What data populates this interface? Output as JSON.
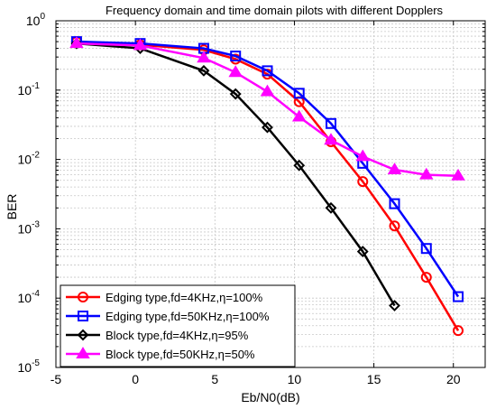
{
  "chart_data": {
    "type": "line",
    "title": "Frequency domain and time domain pilots with different Dopplers",
    "xlabel": "Eb/N0(dB)",
    "ylabel": "BER",
    "xlim": [
      -5,
      22
    ],
    "ylim": [
      1e-05,
      1
    ],
    "yscale": "log",
    "grid": true,
    "legend_position": "bottom-left",
    "xticks": [
      -5,
      0,
      5,
      10,
      15,
      20
    ],
    "yticks": [
      {
        "value": 1e-05,
        "base": "10",
        "exp": "-5"
      },
      {
        "value": 0.0001,
        "base": "10",
        "exp": "-4"
      },
      {
        "value": 0.001,
        "base": "10",
        "exp": "-3"
      },
      {
        "value": 0.01,
        "base": "10",
        "exp": "-2"
      },
      {
        "value": 0.1,
        "base": "10",
        "exp": "-1"
      },
      {
        "value": 1,
        "base": "10",
        "exp": "0"
      }
    ],
    "series": [
      {
        "name": "Edging type,fd=4KHz,η=100%",
        "color": "#ff0000",
        "marker": "circle",
        "x": [
          -3.7,
          0.3,
          4.3,
          6.3,
          8.3,
          10.3,
          12.3,
          14.3,
          16.3,
          18.3,
          20.3
        ],
        "y": [
          0.5,
          0.45,
          0.38,
          0.28,
          0.17,
          0.068,
          0.018,
          0.0048,
          0.0011,
          0.0002,
          3.4e-05
        ]
      },
      {
        "name": "Edging type,fd=50KHz,η=100%",
        "color": "#0000ff",
        "marker": "square",
        "x": [
          -3.7,
          0.3,
          4.3,
          6.3,
          8.3,
          10.3,
          12.3,
          14.3,
          16.3,
          18.3,
          20.3
        ],
        "y": [
          0.5,
          0.47,
          0.4,
          0.31,
          0.19,
          0.09,
          0.033,
          0.0088,
          0.0023,
          0.00052,
          0.000105
        ]
      },
      {
        "name": "Block type,fd=4KHz,η=95%",
        "color": "#000000",
        "marker": "diamond",
        "x": [
          -3.7,
          0.3,
          4.3,
          6.3,
          8.3,
          10.3,
          12.3,
          14.3,
          16.3
        ],
        "y": [
          0.47,
          0.4,
          0.19,
          0.088,
          0.029,
          0.0082,
          0.002,
          0.00047,
          7.8e-05
        ]
      },
      {
        "name": "Block type,fd=50KHz,η=50%",
        "color": "#ff00ff",
        "marker": "triangle",
        "x": [
          -3.7,
          0.3,
          4.3,
          6.3,
          8.3,
          10.3,
          12.3,
          14.3,
          16.3,
          18.3,
          20.3
        ],
        "y": [
          0.47,
          0.44,
          0.29,
          0.18,
          0.095,
          0.041,
          0.019,
          0.011,
          0.0071,
          0.006,
          0.0058
        ]
      }
    ]
  }
}
